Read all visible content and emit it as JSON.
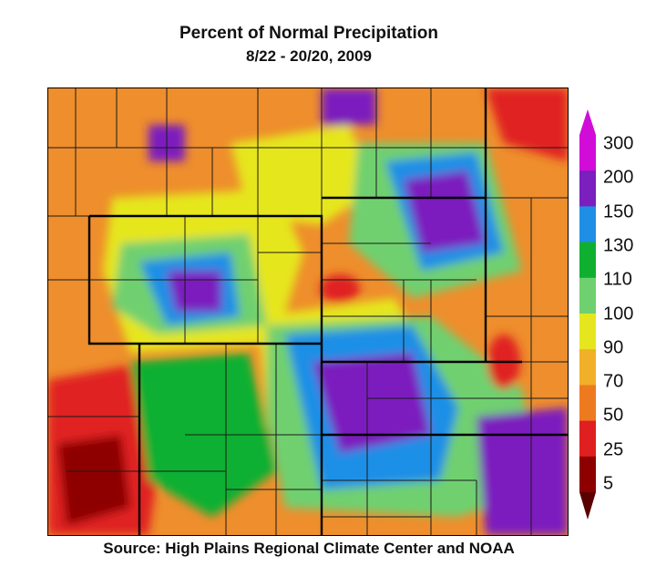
{
  "title": "Percent of Normal Precipitation",
  "subtitle": "8/22 - 20/20, 2009",
  "source": "Source: High Plains Regional Climate Center and NOAA",
  "legend": {
    "labels": [
      "300",
      "200",
      "150",
      "130",
      "110",
      "100",
      "90",
      "70",
      "50",
      "25",
      "5"
    ],
    "colors": [
      "#d10bd8",
      "#7b1fbe",
      "#1f8fe6",
      "#0fb030",
      "#6fd06f",
      "#e6e61e",
      "#f0b028",
      "#ee7a20",
      "#e02020",
      "#8e0000"
    ]
  },
  "map": {
    "base_color": "#ee8e2c",
    "region": "High Plains (Wyoming, Colorado, Nebraska, Kansas and surrounding areas)"
  }
}
